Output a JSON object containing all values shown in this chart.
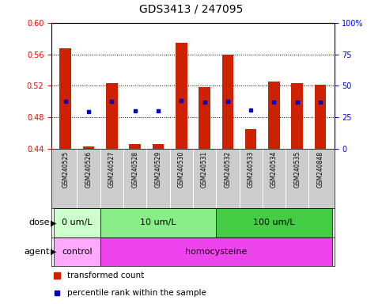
{
  "title": "GDS3413 / 247095",
  "samples": [
    "GSM240525",
    "GSM240526",
    "GSM240527",
    "GSM240528",
    "GSM240529",
    "GSM240530",
    "GSM240531",
    "GSM240532",
    "GSM240533",
    "GSM240534",
    "GSM240535",
    "GSM240848"
  ],
  "red_values": [
    0.568,
    0.443,
    0.523,
    0.446,
    0.446,
    0.575,
    0.518,
    0.56,
    0.465,
    0.526,
    0.523,
    0.521
  ],
  "blue_values": [
    0.5,
    0.487,
    0.5,
    0.488,
    0.488,
    0.501,
    0.499,
    0.5,
    0.489,
    0.499,
    0.499,
    0.499
  ],
  "ylim_left": [
    0.44,
    0.6
  ],
  "ylim_right": [
    0,
    100
  ],
  "yticks_left": [
    0.44,
    0.48,
    0.52,
    0.56,
    0.6
  ],
  "yticks_right": [
    0,
    25,
    50,
    75,
    100
  ],
  "dose_segs": [
    {
      "s": 0,
      "e": 1,
      "color": "#ccffcc",
      "label": "0 um/L"
    },
    {
      "s": 2,
      "e": 6,
      "color": "#88ee88",
      "label": "10 um/L"
    },
    {
      "s": 7,
      "e": 11,
      "color": "#44cc44",
      "label": "100 um/L"
    }
  ],
  "agent_segs": [
    {
      "s": 0,
      "e": 1,
      "color": "#ffaaff",
      "label": "control"
    },
    {
      "s": 2,
      "e": 11,
      "color": "#ee44ee",
      "label": "homocysteine"
    }
  ],
  "bar_color": "#cc2200",
  "dot_color": "#0000cc",
  "bar_width": 0.5,
  "baseline": 0.44,
  "sample_bg": "#cccccc",
  "tick_fontsize": 7,
  "title_fontsize": 10,
  "legend_fontsize": 7.5,
  "sample_fontsize": 5.5,
  "annotation_fontsize": 8
}
